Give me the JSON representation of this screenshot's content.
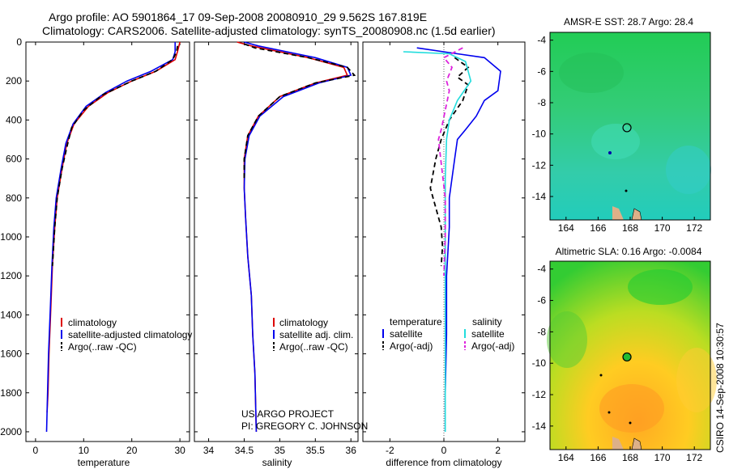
{
  "header": {
    "line1": "Argo profile: AO 5901864_17 09-Sep-2008 20080910_29 9.562S 167.819E",
    "line2": "Climatology: CARS2006. Satellite-adjusted climatology: synTS_20080908.nc (1.5d earlier)"
  },
  "side_label": "CSIRO 14-Sep-2008 10:30:57",
  "credit": {
    "line1": "US ARGO PROJECT",
    "line2": "PI: GREGORY C. JOHNSON"
  },
  "colors": {
    "clim": "#dd0000",
    "sat": "#0000ee",
    "argo": "#000000",
    "sal_sat": "#22dddd",
    "sal_argo": "#dd22dd"
  },
  "chart_data": [
    {
      "type": "line",
      "id": "temperature",
      "xlabel": "temperature",
      "ylabel": "",
      "xlim": [
        -2,
        32
      ],
      "ylim": [
        2050,
        0
      ],
      "xticks": [
        0,
        10,
        20,
        30
      ],
      "yticks": [
        0,
        200,
        400,
        600,
        800,
        1000,
        1200,
        1400,
        1600,
        1800,
        2000
      ],
      "legend": [
        "climatology",
        "satellite-adjusted climatology",
        "Argo(..raw -QC)"
      ],
      "series": [
        {
          "name": "climatology",
          "color": "#dd0000",
          "dash": false,
          "x": [
            30,
            29.5,
            29,
            25,
            20,
            15,
            11,
            8,
            6.5,
            5.5,
            4.5,
            4,
            3.5,
            3.2,
            2.8,
            2.6,
            2.4
          ],
          "y": [
            0,
            50,
            90,
            150,
            200,
            260,
            330,
            420,
            520,
            650,
            800,
            950,
            1150,
            1350,
            1600,
            1800,
            1900
          ]
        },
        {
          "name": "satellite-adjusted climatology",
          "color": "#0000ee",
          "dash": false,
          "x": [
            29,
            29,
            28.5,
            24,
            19,
            14.5,
            10.5,
            7.8,
            6.3,
            5.3,
            4.3,
            3.8,
            3.4,
            3.1,
            2.7,
            2.5,
            2.3
          ],
          "y": [
            0,
            50,
            90,
            150,
            200,
            260,
            330,
            420,
            520,
            650,
            800,
            950,
            1150,
            1350,
            1600,
            1800,
            2000
          ]
        },
        {
          "name": "Argo(..raw -QC)",
          "color": "#000000",
          "dash": true,
          "x": [
            29.5,
            29.3,
            28.5,
            25,
            20,
            14,
            10,
            7.5,
            6.5,
            5.5,
            4.5,
            4,
            3.5
          ],
          "y": [
            20,
            50,
            90,
            150,
            200,
            270,
            350,
            440,
            540,
            650,
            800,
            950,
            1150
          ]
        }
      ]
    },
    {
      "type": "line",
      "id": "salinity",
      "xlabel": "salinity",
      "xlim": [
        33.8,
        36.1
      ],
      "ylim": [
        2050,
        0
      ],
      "xticks": [
        34,
        34.5,
        35,
        35.5,
        36
      ],
      "legend": [
        "climatology",
        "satellite adj. clim.",
        "Argo(..raw -QC)"
      ],
      "series": [
        {
          "name": "climatology",
          "color": "#dd0000",
          "dash": false,
          "x": [
            34.4,
            34.6,
            35.4,
            35.9,
            35.95,
            35.5,
            35,
            34.7,
            34.55,
            34.5,
            34.5,
            34.52,
            34.55,
            34.6,
            34.62,
            34.65,
            34.67
          ],
          "y": [
            0,
            20,
            80,
            130,
            170,
            210,
            280,
            380,
            480,
            600,
            750,
            900,
            1100,
            1300,
            1500,
            1700,
            2000
          ]
        },
        {
          "name": "satellite adj. clim.",
          "color": "#0000ee",
          "dash": false,
          "x": [
            34.5,
            34.7,
            35.5,
            35.95,
            36.0,
            35.55,
            35.05,
            34.72,
            34.57,
            34.51,
            34.5,
            34.52,
            34.55,
            34.6,
            34.62,
            34.65,
            34.67
          ],
          "y": [
            0,
            20,
            80,
            130,
            170,
            210,
            280,
            380,
            480,
            600,
            750,
            900,
            1100,
            1300,
            1500,
            1700,
            2000
          ]
        },
        {
          "name": "Argo(..raw -QC)",
          "color": "#000000",
          "dash": true,
          "x": [
            34.5,
            34.65,
            35.4,
            35.95,
            36.05,
            35.5,
            35,
            34.7,
            34.55,
            34.5,
            34.5
          ],
          "y": [
            10,
            30,
            80,
            130,
            170,
            210,
            280,
            380,
            480,
            600,
            700
          ]
        }
      ]
    },
    {
      "type": "line",
      "id": "difference",
      "xlabel": "difference from climatology",
      "xlim": [
        -3,
        3
      ],
      "ylim": [
        2050,
        0
      ],
      "xticks": [
        -2,
        0,
        2
      ],
      "legend_titles": [
        "temperature",
        "salinity"
      ],
      "legend": [
        "satellite",
        "Argo(-adj)",
        "satellite",
        "Argo(-adj)"
      ],
      "series": [
        {
          "name": "temperature satellite",
          "color": "#0000ee",
          "dash": false,
          "x": [
            -1,
            0.5,
            1.5,
            2.1,
            2.0,
            1.5,
            1.2,
            0.8,
            0.5,
            0.4,
            0.3,
            0.2,
            0.2,
            0.1,
            0.1,
            0.05,
            0.05
          ],
          "y": [
            30,
            60,
            80,
            150,
            250,
            300,
            380,
            450,
            500,
            600,
            700,
            800,
            950,
            1200,
            1500,
            1800,
            2000
          ]
        },
        {
          "name": "temperature Argo(-adj)",
          "color": "#000000",
          "dash": true,
          "x": [
            0.4,
            0.9,
            0.5,
            0.9,
            0.7,
            0.2,
            -0.1,
            -0.3,
            -0.5,
            -0.3,
            -0.1,
            -0.05,
            -0.1
          ],
          "y": [
            80,
            130,
            180,
            220,
            300,
            400,
            500,
            600,
            750,
            850,
            950,
            1050,
            1150
          ]
        },
        {
          "name": "salinity satellite",
          "color": "#22dddd",
          "dash": false,
          "x": [
            -1.5,
            0.2,
            0.8,
            1.0,
            0.5,
            0.2,
            0.1,
            0.05,
            0.05,
            0.05,
            0.05,
            0.05
          ],
          "y": [
            50,
            60,
            100,
            200,
            300,
            400,
            500,
            700,
            900,
            1300,
            1700,
            2000
          ]
        },
        {
          "name": "salinity Argo(-adj)",
          "color": "#dd22dd",
          "dash": true,
          "x": [
            0.7,
            0,
            0.3,
            0.1,
            0.2,
            -0.1,
            -0.2,
            0.05,
            0.05,
            0.0
          ],
          "y": [
            30,
            80,
            130,
            200,
            250,
            450,
            500,
            800,
            1000,
            1200
          ]
        }
      ]
    },
    {
      "type": "heatmap",
      "id": "sst-map",
      "title": "AMSR-E SST: 28.7 Argo: 28.4",
      "xlim": [
        163,
        173
      ],
      "ylim": [
        -15.5,
        -3.5
      ],
      "xticks": [
        164,
        166,
        168,
        170,
        172
      ],
      "yticks": [
        -4,
        -6,
        -8,
        -10,
        -12,
        -14
      ],
      "point": [
        167.8,
        -9.6
      ]
    },
    {
      "type": "heatmap",
      "id": "sla-map",
      "title": "Altimetric SLA: 0.16 Argo: -0.0084",
      "xlim": [
        163,
        173
      ],
      "ylim": [
        -15.5,
        -3.5
      ],
      "xticks": [
        164,
        166,
        168,
        170,
        172
      ],
      "yticks": [
        -4,
        -6,
        -8,
        -10,
        -12,
        -14
      ],
      "point": [
        167.8,
        -9.6
      ]
    }
  ]
}
